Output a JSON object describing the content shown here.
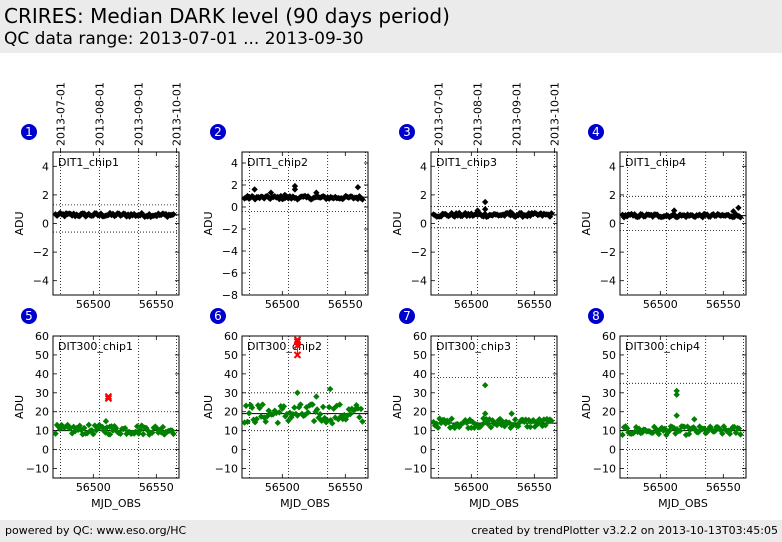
{
  "header": {
    "title": "CRIRES: Median DARK level (90 days period)",
    "subtitle": "QC data range: 2013-07-01 ... 2013-09-30"
  },
  "footer": {
    "left": "powered by QC: www.eso.org/HC",
    "right": "created by trendPlotter v3.2.2 on 2013-10-13T03:45:05"
  },
  "colors": {
    "row1_points": "#000000",
    "row2_points": "#008000",
    "outlier": "#ff0000",
    "badge": "#0000cc"
  },
  "chart_data": {
    "type": "scatter",
    "top_date_ticks": [
      "2013-07-01",
      "2013-08-01",
      "2013-09-01",
      "2013-10-01"
    ],
    "top_date_tick_mjd": [
      56474,
      56505,
      56536,
      56566
    ],
    "x_label": "MJD_OBS",
    "x_range": [
      56468,
      56568
    ],
    "x_ticks": [
      56500,
      56550
    ],
    "panels": [
      {
        "badge": "1",
        "name": "DIT1_chip1",
        "ylabel": "ADU",
        "ylim": [
          -5,
          5
        ],
        "yticks": [
          -4,
          -2,
          0,
          2,
          4
        ],
        "median": 0.6,
        "upper": 1.3,
        "lower": -0.6,
        "level": 0.6,
        "amp": 0.14,
        "extra": [],
        "outliers": []
      },
      {
        "badge": "2",
        "name": "DIT1_chip2",
        "ylabel": "ADU",
        "ylim": [
          -8,
          5
        ],
        "yticks": [
          -8,
          -6,
          -4,
          -2,
          0,
          2,
          4
        ],
        "median": 0.9,
        "upper": 2.4,
        "lower": -0.4,
        "level": 0.85,
        "amp": 0.16,
        "extra": [
          [
            56478,
            1.6
          ],
          [
            56491,
            1.3
          ],
          [
            56502,
            1.1
          ],
          [
            56510,
            1.9
          ],
          [
            56510,
            1.6
          ],
          [
            56527,
            1.3
          ],
          [
            56560,
            1.8
          ]
        ],
        "outliers": []
      },
      {
        "badge": "3",
        "name": "DIT1_chip3",
        "ylabel": "ADU",
        "ylim": [
          -5,
          5
        ],
        "yticks": [
          -4,
          -2,
          0,
          2,
          4
        ],
        "median": 0.6,
        "upper": 1.2,
        "lower": -0.3,
        "level": 0.6,
        "amp": 0.14,
        "extra": [
          [
            56505,
            0.9
          ],
          [
            56511,
            1.5
          ],
          [
            56511,
            1.0
          ],
          [
            56531,
            0.8
          ]
        ],
        "outliers": []
      },
      {
        "badge": "4",
        "name": "DIT1_chip4",
        "ylabel": "ADU",
        "ylim": [
          -5,
          5
        ],
        "yticks": [
          -4,
          -2,
          0,
          2,
          4
        ],
        "median": 0.55,
        "upper": 1.9,
        "lower": -0.5,
        "level": 0.55,
        "amp": 0.12,
        "extra": [
          [
            56511,
            0.9
          ],
          [
            56558,
            0.85
          ],
          [
            56562,
            1.1
          ]
        ],
        "outliers": []
      },
      {
        "badge": "5",
        "name": "DIT300_chip1",
        "ylabel": "ADU",
        "xlabel": "MJD_OBS",
        "ylim": [
          -15,
          60
        ],
        "yticks": [
          -10,
          0,
          10,
          20,
          30,
          40,
          50,
          60
        ],
        "median": 10,
        "upper": 20,
        "lower": 0,
        "level": 10.5,
        "amp": 2.6,
        "extra": [
          [
            56510,
            15
          ],
          [
            56513,
            12
          ]
        ],
        "outliers": [
          [
            56512,
            28
          ],
          [
            56512,
            27
          ]
        ]
      },
      {
        "badge": "6",
        "name": "DIT300_chip2",
        "ylabel": "ADU",
        "xlabel": "MJD_OBS",
        "ylim": [
          -15,
          60
        ],
        "yticks": [
          -10,
          0,
          10,
          20,
          30,
          40,
          50,
          60
        ],
        "median": 19,
        "upper": 30,
        "lower": 10,
        "level": 19,
        "amp": 5.2,
        "extra": [
          [
            56512,
            30
          ],
          [
            56527,
            28
          ],
          [
            56538,
            32
          ]
        ],
        "outliers": [
          [
            56512,
            58
          ],
          [
            56512,
            57
          ],
          [
            56512,
            55
          ],
          [
            56512,
            50
          ]
        ]
      },
      {
        "badge": "7",
        "name": "DIT300_chip3",
        "ylabel": "ADU",
        "xlabel": "MJD_OBS",
        "ylim": [
          -15,
          60
        ],
        "yticks": [
          -10,
          0,
          10,
          20,
          30,
          40,
          50,
          60
        ],
        "median": 14,
        "upper": 38,
        "lower": 6,
        "level": 14,
        "amp": 2.6,
        "extra": [
          [
            56511,
            34
          ],
          [
            56511,
            19
          ],
          [
            56532,
            19
          ]
        ],
        "outliers": []
      },
      {
        "badge": "8",
        "name": "DIT300_chip4",
        "ylabel": "ADU",
        "xlabel": "MJD_OBS",
        "ylim": [
          -15,
          60
        ],
        "yticks": [
          -10,
          0,
          10,
          20,
          30,
          40,
          50,
          60
        ],
        "median": 10,
        "upper": 35,
        "lower": 0,
        "level": 10,
        "amp": 2.3,
        "extra": [
          [
            56513,
            31
          ],
          [
            56513,
            29
          ],
          [
            56513,
            18
          ],
          [
            56527,
            16
          ]
        ],
        "outliers": []
      }
    ]
  }
}
